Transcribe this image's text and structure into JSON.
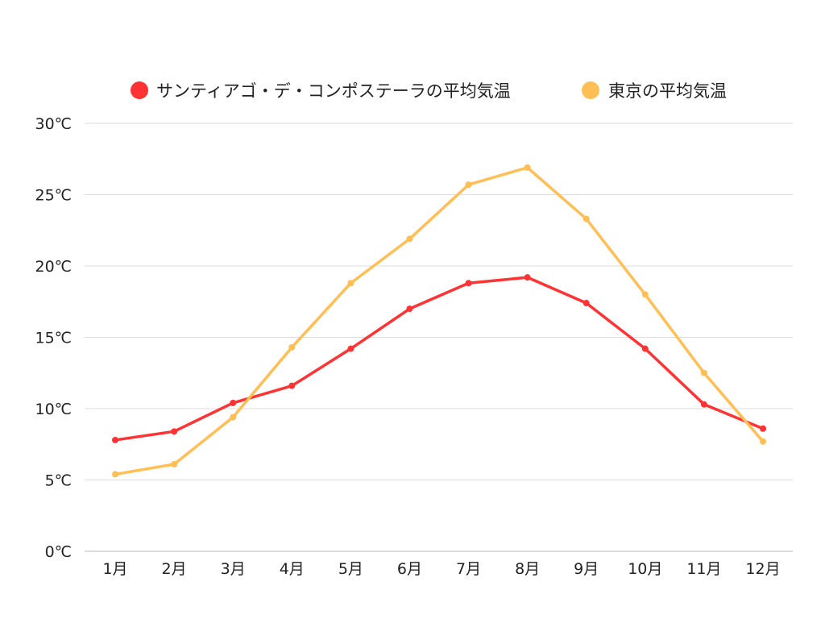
{
  "chart_data": {
    "type": "line",
    "title": "",
    "xlabel": "",
    "ylabel": "",
    "categories": [
      "1月",
      "2月",
      "3月",
      "4月",
      "5月",
      "6月",
      "7月",
      "8月",
      "9月",
      "10月",
      "11月",
      "12月"
    ],
    "y_ticks": [
      "0℃",
      "5℃",
      "10℃",
      "15℃",
      "20℃",
      "25℃",
      "30℃"
    ],
    "ylim": [
      0,
      30
    ],
    "grid": true,
    "legend_position": "top-center",
    "series": [
      {
        "name": "サンティアゴ・デ・コンポステーラの平均気温",
        "color": "#ff3333",
        "values": [
          7.8,
          8.4,
          10.4,
          11.6,
          14.2,
          17.0,
          18.8,
          19.2,
          17.4,
          14.2,
          10.3,
          8.6
        ]
      },
      {
        "name": "東京の平均気温",
        "color": "#ffbf55",
        "values": [
          5.4,
          6.1,
          9.4,
          14.3,
          18.8,
          21.9,
          25.7,
          26.9,
          23.3,
          18.0,
          12.5,
          7.7
        ]
      }
    ]
  }
}
